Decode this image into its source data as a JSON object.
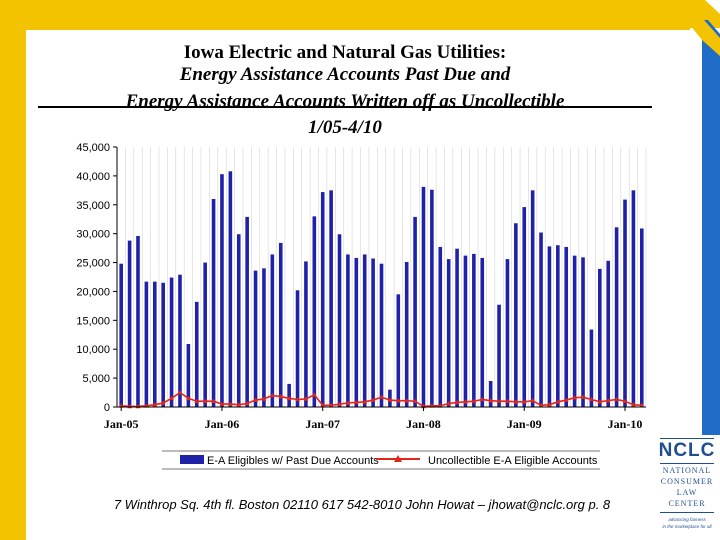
{
  "title": {
    "line1": "Iowa Electric and Natural Gas Utilities:",
    "line2": "Energy Assistance Accounts Past Due and",
    "line3": "Energy Assistance Accounts Written off as Uncollectible",
    "line4": "1/05-4/10"
  },
  "footer": "7 Winthrop Sq. 4th fl. Boston 02110  617 542-8010  John Howat – jhowat@nclc.org  p. 8",
  "logo": {
    "main": "NCLC",
    "line1": "NATIONAL",
    "line2": "CONSUMER",
    "line3": "LAW",
    "line4": "CENTER",
    "tag1": "advancing fairness",
    "tag2": "in the marketplace for all"
  },
  "colors": {
    "bar": "#1f22a8",
    "line": "#e0261c",
    "border_yellow": "#f4c300",
    "border_blue": "#1f6dc6"
  },
  "chart_data": {
    "type": "bar",
    "title": "Energy Assistance Accounts Past Due and Energy Assistance Accounts Written off as Uncollectible 1/05-4/10",
    "xlabel": "",
    "ylabel": "",
    "ylim": [
      0,
      45000
    ],
    "yticks": [
      0,
      5000,
      10000,
      15000,
      20000,
      25000,
      30000,
      35000,
      40000,
      45000
    ],
    "ytick_labels": [
      "0",
      "5,000",
      "10,000",
      "15,000",
      "20,000",
      "25,000",
      "30,000",
      "35,000",
      "40,000",
      "45,000"
    ],
    "xtick_labels": [
      {
        "index": 0,
        "label": "Jan-05"
      },
      {
        "index": 12,
        "label": "Jan-06"
      },
      {
        "index": 24,
        "label": "Jan-07"
      },
      {
        "index": 36,
        "label": "Jan-08"
      },
      {
        "index": 48,
        "label": "Jan-09"
      },
      {
        "index": 60,
        "label": "Jan-10"
      }
    ],
    "grid": true,
    "legend": "bottom",
    "series": [
      {
        "name": "E-A Eligibles w/ Past Due Accounts",
        "kind": "bar",
        "values": [
          24800,
          28800,
          29600,
          21700,
          21700,
          21500,
          22400,
          22900,
          10900,
          18200,
          25000,
          36000,
          40300,
          40800,
          29900,
          32900,
          23600,
          24000,
          26400,
          28400,
          4000,
          20200,
          25200,
          33000,
          37200,
          37500,
          29900,
          26400,
          25800,
          26400,
          25700,
          24800,
          3000,
          19500,
          25100,
          32900,
          38100,
          37600,
          27700,
          25600,
          27400,
          26200,
          26500,
          25800,
          4500,
          17700,
          25600,
          31800,
          34600,
          37500,
          30200,
          27800,
          28000,
          27700,
          26200,
          25900,
          13400,
          23900,
          25300,
          31100,
          35900,
          37500,
          30900
        ]
      },
      {
        "name": "Uncollectible E-A Eligible Accounts",
        "kind": "line",
        "values": [
          200,
          100,
          100,
          200,
          400,
          700,
          1500,
          2500,
          1500,
          1000,
          1000,
          1000,
          500,
          500,
          400,
          600,
          1200,
          1400,
          2000,
          1800,
          1500,
          1300,
          1400,
          2100,
          300,
          300,
          500,
          700,
          800,
          900,
          1200,
          1700,
          1200,
          1100,
          1100,
          1000,
          100,
          200,
          200,
          600,
          800,
          900,
          1000,
          1300,
          1100,
          1000,
          1000,
          900,
          900,
          1100,
          300,
          400,
          900,
          1200,
          1600,
          1700,
          1300,
          900,
          1100,
          1300,
          1000,
          400,
          300
        ]
      }
    ]
  }
}
